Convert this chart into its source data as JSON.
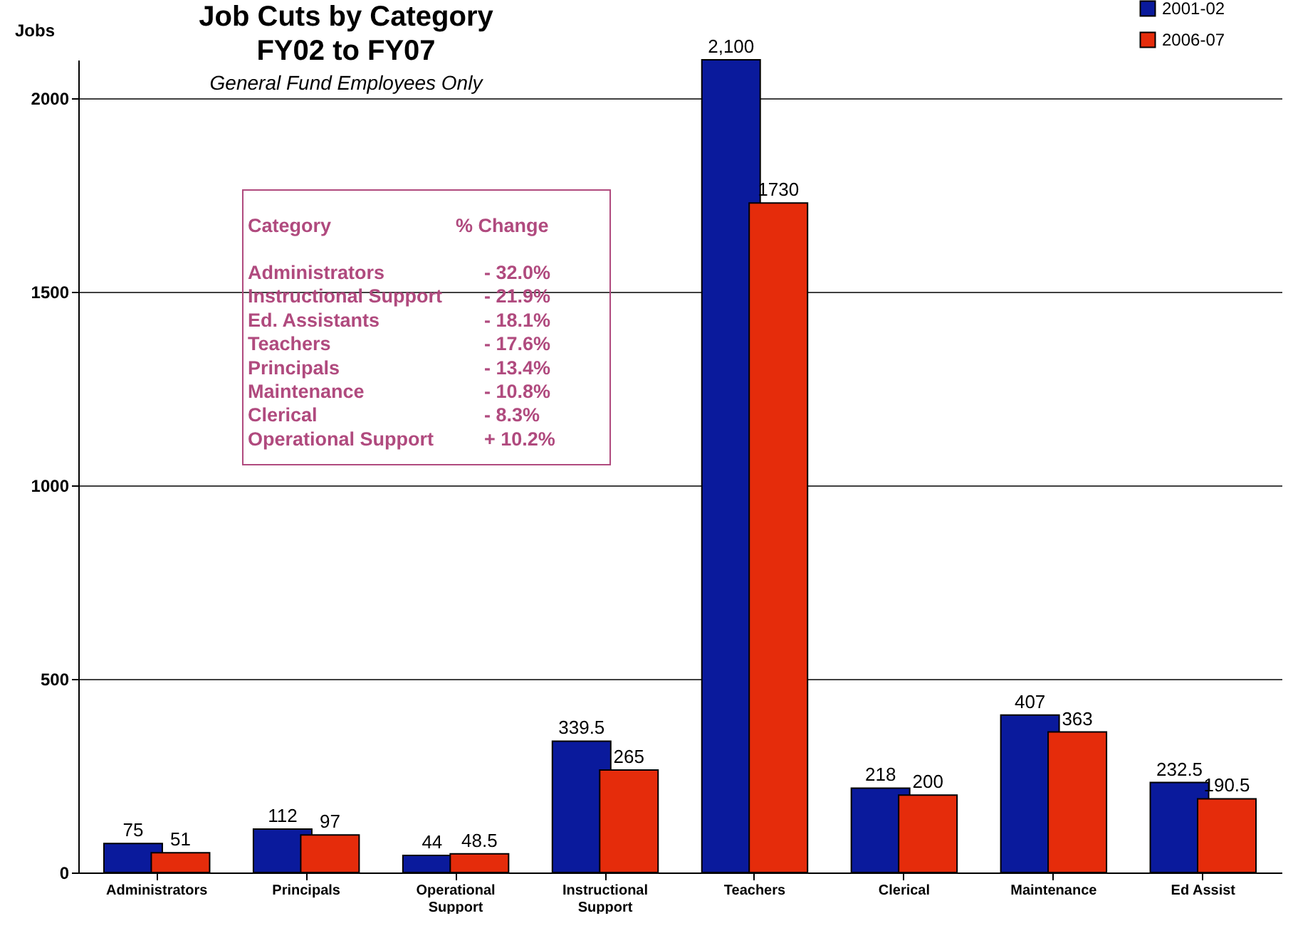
{
  "chart_data": {
    "type": "bar",
    "title": "Job Cuts by Category\nFY02 to FY07",
    "subtitle": "General Fund Employees Only",
    "ylabel": "Jobs",
    "categories": [
      "Administrators",
      "Principals",
      "Operational Support",
      "Instructional Support",
      "Teachers",
      "Clerical",
      "Maintenance",
      "Ed Assist"
    ],
    "series": [
      {
        "name": "2001-02",
        "color": "#0a1a9c",
        "values": [
          75,
          112,
          44,
          339.5,
          2100,
          218,
          407,
          232.5
        ],
        "value_labels": [
          "75",
          "112",
          "44",
          "339.5",
          "2,100",
          "218",
          "407",
          "232.5"
        ]
      },
      {
        "name": "2006-07",
        "color": "#e52c0b",
        "values": [
          51,
          97,
          48.5,
          265,
          1730,
          200,
          363,
          190.5
        ],
        "value_labels": [
          "51",
          "97",
          "48.5",
          "265",
          "1730",
          "200",
          "363",
          "190.5"
        ]
      }
    ],
    "ylim": [
      0,
      2100
    ],
    "yticks": [
      0,
      500,
      1000,
      1500,
      2000
    ],
    "grid": "y",
    "legend": "top right",
    "annotations": [
      "Category",
      "% Change",
      "Administrators",
      "- 32.0%",
      "Instructional Support",
      "- 21.9%",
      "Ed. Assistants",
      "- 18.1%",
      "Teachers",
      "- 17.6%",
      "Principals",
      "- 13.4%",
      "Maintenance",
      "- 10.8%",
      "Clerical",
      "-  8.3%",
      "Operational Support",
      "+ 10.2%"
    ]
  }
}
